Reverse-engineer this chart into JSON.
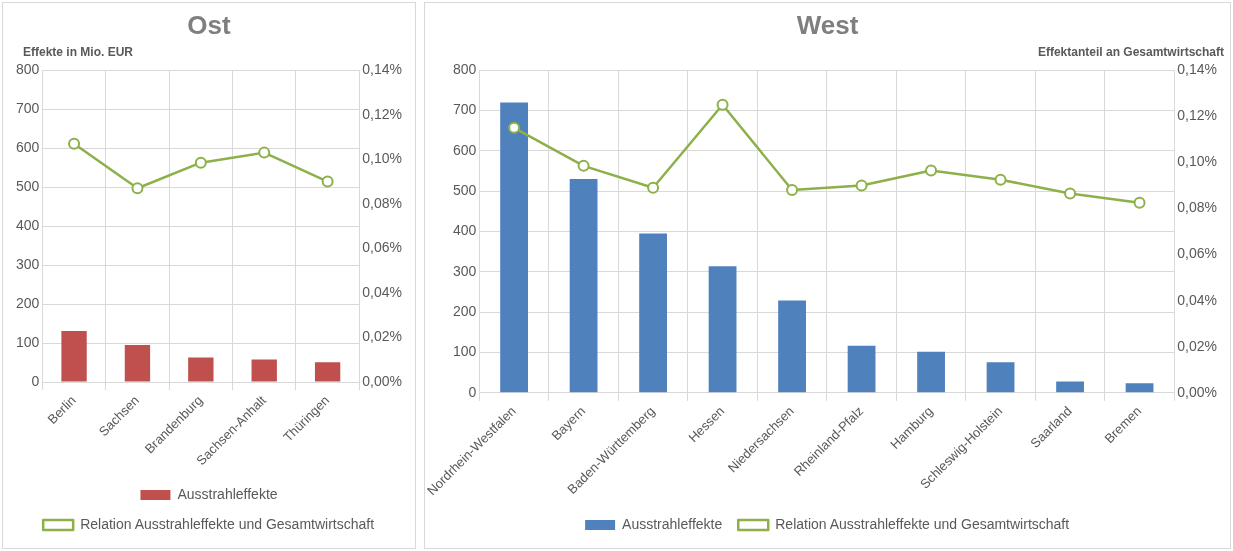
{
  "chart_data": [
    {
      "type": "bar",
      "title": "Ost",
      "ylabel": "Effekte in Mio. EUR",
      "categories": [
        "Berlin",
        "Sachsen",
        "Brandenburg",
        "Sachsen-Anhalt",
        "Thüringen"
      ],
      "series": [
        {
          "name": "Ausstrahleffekte",
          "color": "#c0504d",
          "values": [
            131,
            95,
            63,
            58,
            51
          ]
        },
        {
          "name": "Relation Ausstrahleffekte und Gesamtwirtschaft",
          "type": "line",
          "axis": "y2",
          "color": "#8db04a",
          "values": [
            0.107,
            0.087,
            0.0985,
            0.103,
            0.09
          ]
        }
      ],
      "ylim": [
        0,
        800
      ],
      "yticks": [
        0,
        100,
        200,
        300,
        400,
        500,
        600,
        700,
        800
      ],
      "y2lim": [
        0,
        0.14
      ],
      "y2ticks": [
        {
          "value": 0,
          "label": "0,00%"
        },
        {
          "value": 0.02,
          "label": "0,02%"
        },
        {
          "value": 0.04,
          "label": "0,04%"
        },
        {
          "value": 0.06,
          "label": "0,06%"
        },
        {
          "value": 0.08,
          "label": "0,08%"
        },
        {
          "value": 0.1,
          "label": "0,10%"
        },
        {
          "value": 0.12,
          "label": "0,12%"
        },
        {
          "value": 0.14,
          "label": "0,14%"
        }
      ],
      "grid": true,
      "legend": "bottom",
      "marker": "circle"
    },
    {
      "type": "bar",
      "title": "West",
      "y2label": "Effektanteil an Gesamtwirtschaft",
      "categories": [
        "Nordrhein-Westfalen",
        "Bayern",
        "Baden-Württemberg",
        "Hessen",
        "Niedersachsen",
        "Rheinland-Pfalz",
        "Hamburg",
        "Schleswig-Holstein",
        "Saarland",
        "Bremen"
      ],
      "series": [
        {
          "name": "Ausstrahleffekte",
          "color": "#4f81bd",
          "values": [
            720,
            530,
            395,
            314,
            229,
            117,
            102,
            76,
            28,
            24
          ]
        },
        {
          "name": "Relation Ausstrahleffekte und Gesamtwirtschaft",
          "type": "line",
          "axis": "y2",
          "color": "#8db04a",
          "values": [
            0.115,
            0.0985,
            0.089,
            0.125,
            0.088,
            0.09,
            0.0965,
            0.0925,
            0.0865,
            0.0825
          ]
        }
      ],
      "ylim": [
        0,
        800
      ],
      "yticks": [
        0,
        100,
        200,
        300,
        400,
        500,
        600,
        700,
        800
      ],
      "y2lim": [
        0,
        0.14
      ],
      "y2ticks": [
        {
          "value": 0,
          "label": "0,00%"
        },
        {
          "value": 0.02,
          "label": "0,02%"
        },
        {
          "value": 0.04,
          "label": "0,04%"
        },
        {
          "value": 0.06,
          "label": "0,06%"
        },
        {
          "value": 0.08,
          "label": "0,08%"
        },
        {
          "value": 0.1,
          "label": "0,10%"
        },
        {
          "value": 0.12,
          "label": "0,12%"
        },
        {
          "value": 0.14,
          "label": "0,14%"
        }
      ],
      "grid": true,
      "legend": "bottom",
      "marker": "circle"
    }
  ]
}
